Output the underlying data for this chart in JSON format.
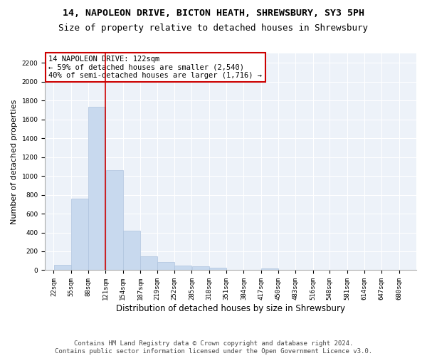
{
  "title1": "14, NAPOLEON DRIVE, BICTON HEATH, SHREWSBURY, SY3 5PH",
  "title2": "Size of property relative to detached houses in Shrewsbury",
  "xlabel": "Distribution of detached houses by size in Shrewsbury",
  "ylabel": "Number of detached properties",
  "footer1": "Contains HM Land Registry data © Crown copyright and database right 2024.",
  "footer2": "Contains public sector information licensed under the Open Government Licence v3.0.",
  "annotation_line1": "14 NAPOLEON DRIVE: 122sqm",
  "annotation_line2": "← 59% of detached houses are smaller (2,540)",
  "annotation_line3": "40% of semi-detached houses are larger (1,716) →",
  "property_sqm": 122,
  "bar_left_edges": [
    22,
    55,
    88,
    121,
    154,
    187,
    219,
    252,
    285,
    318,
    351,
    384,
    417,
    450,
    483,
    516,
    548,
    581,
    614,
    647
  ],
  "bar_heights": [
    55,
    760,
    1730,
    1060,
    420,
    150,
    85,
    50,
    40,
    30,
    0,
    0,
    20,
    0,
    0,
    0,
    0,
    0,
    0,
    0
  ],
  "bin_width": 33,
  "bar_color": "#c8d9ee",
  "bar_edge_color": "#aec3de",
  "vline_color": "#cc0000",
  "vline_x": 121,
  "ylim": [
    0,
    2300
  ],
  "yticks": [
    0,
    200,
    400,
    600,
    800,
    1000,
    1200,
    1400,
    1600,
    1800,
    2000,
    2200
  ],
  "xtick_labels": [
    "22sqm",
    "55sqm",
    "88sqm",
    "121sqm",
    "154sqm",
    "187sqm",
    "219sqm",
    "252sqm",
    "285sqm",
    "318sqm",
    "351sqm",
    "384sqm",
    "417sqm",
    "450sqm",
    "483sqm",
    "516sqm",
    "548sqm",
    "581sqm",
    "614sqm",
    "647sqm",
    "680sqm"
  ],
  "xtick_positions": [
    22,
    55,
    88,
    121,
    154,
    187,
    219,
    252,
    285,
    318,
    351,
    384,
    417,
    450,
    483,
    516,
    548,
    581,
    614,
    647,
    680
  ],
  "background_color": "#edf2f9",
  "grid_color": "#ffffff",
  "annotation_border_color": "#cc0000",
  "title1_fontsize": 9.5,
  "title2_fontsize": 9,
  "xlabel_fontsize": 8.5,
  "ylabel_fontsize": 8,
  "tick_fontsize": 6.5,
  "annotation_fontsize": 7.5,
  "footer_fontsize": 6.5
}
